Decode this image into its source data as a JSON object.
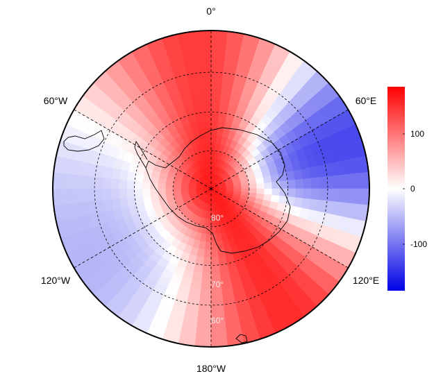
{
  "map": {
    "projection": "south-polar-stereographic",
    "colormap": [
      "#0000e6",
      "#ffffff",
      "#ff0000"
    ],
    "value_range": [
      -180,
      180
    ],
    "field": {
      "base": 20,
      "waves": [
        {
          "m": 2,
          "amp": 110,
          "phase_deg": 320
        },
        {
          "m": 3,
          "amp": 40,
          "phase_deg": 40
        }
      ],
      "polar_cap": {
        "amp": 160,
        "width_deg": 14
      }
    },
    "lon_labels": {
      "top": "0°",
      "upper_left": "60°W",
      "upper_right": "60°E",
      "lower_left": "120°W",
      "lower_right": "120°E",
      "bottom": "180°W"
    },
    "lat_labels": [
      "80°",
      "70°",
      "60°"
    ],
    "lat_circles": [
      80,
      70,
      60,
      50
    ]
  },
  "colorbar": {
    "colors": [
      "#0000e6",
      "#ffffff",
      "#ff0000"
    ],
    "ticks": [
      {
        "value": 100,
        "label": "100"
      },
      {
        "value": 0,
        "label": "0"
      },
      {
        "value": -100,
        "label": "-100"
      }
    ]
  }
}
